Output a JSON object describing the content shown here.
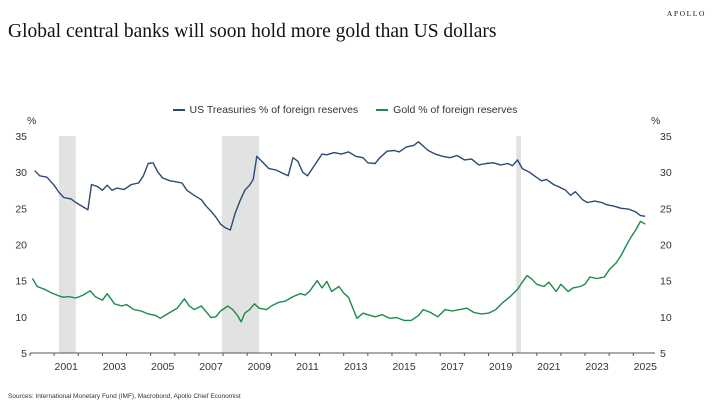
{
  "brand": "APOLLO",
  "title": "Global central banks will soon hold more gold than US dollars",
  "source": "Sources: International Monetary Fund (IMF), Macrobond, Apollo Chief Economist",
  "chart_data": {
    "type": "line",
    "title": "Global central banks will soon hold more gold than US dollars",
    "ylabel_left": "%",
    "ylabel_right": "%",
    "xlim": [
      2000.0,
      2025.9
    ],
    "ylim": [
      5,
      35
    ],
    "y_ticks": [
      5,
      10,
      15,
      20,
      25,
      30,
      35
    ],
    "x_ticks": [
      2001,
      2003,
      2005,
      2007,
      2009,
      2011,
      2013,
      2015,
      2017,
      2019,
      2021,
      2023,
      2025
    ],
    "legend_position": "top-center",
    "grid": false,
    "recession_shading": [
      [
        2001.2,
        2001.9
      ],
      [
        2007.95,
        2009.5
      ],
      [
        2020.15,
        2020.35
      ]
    ],
    "series": [
      {
        "name": "US Treasuries % of foreign reserves",
        "color": "#2b4a73",
        "points": [
          [
            2000.2,
            30.2
          ],
          [
            2000.4,
            29.5
          ],
          [
            2000.7,
            29.3
          ],
          [
            2001.0,
            28.2
          ],
          [
            2001.2,
            27.2
          ],
          [
            2001.4,
            26.5
          ],
          [
            2001.7,
            26.3
          ],
          [
            2001.9,
            25.8
          ],
          [
            2002.2,
            25.2
          ],
          [
            2002.4,
            24.8
          ],
          [
            2002.55,
            28.3
          ],
          [
            2002.8,
            28.0
          ],
          [
            2003.0,
            27.5
          ],
          [
            2003.2,
            28.2
          ],
          [
            2003.4,
            27.5
          ],
          [
            2003.6,
            27.8
          ],
          [
            2003.9,
            27.6
          ],
          [
            2004.2,
            28.3
          ],
          [
            2004.5,
            28.5
          ],
          [
            2004.7,
            29.5
          ],
          [
            2004.9,
            31.2
          ],
          [
            2005.1,
            31.3
          ],
          [
            2005.3,
            30.0
          ],
          [
            2005.5,
            29.2
          ],
          [
            2005.8,
            28.8
          ],
          [
            2006.0,
            28.7
          ],
          [
            2006.3,
            28.5
          ],
          [
            2006.5,
            27.5
          ],
          [
            2006.8,
            26.8
          ],
          [
            2007.1,
            26.2
          ],
          [
            2007.3,
            25.3
          ],
          [
            2007.5,
            24.6
          ],
          [
            2007.7,
            23.8
          ],
          [
            2007.9,
            22.8
          ],
          [
            2008.1,
            22.3
          ],
          [
            2008.3,
            22.0
          ],
          [
            2008.5,
            24.3
          ],
          [
            2008.7,
            26.0
          ],
          [
            2008.9,
            27.5
          ],
          [
            2009.1,
            28.2
          ],
          [
            2009.25,
            29.0
          ],
          [
            2009.4,
            32.2
          ],
          [
            2009.6,
            31.5
          ],
          [
            2009.9,
            30.5
          ],
          [
            2010.2,
            30.3
          ],
          [
            2010.5,
            29.8
          ],
          [
            2010.7,
            29.5
          ],
          [
            2010.9,
            32.0
          ],
          [
            2011.1,
            31.5
          ],
          [
            2011.3,
            30.0
          ],
          [
            2011.5,
            29.5
          ],
          [
            2011.7,
            30.5
          ],
          [
            2011.9,
            31.5
          ],
          [
            2012.1,
            32.5
          ],
          [
            2012.3,
            32.4
          ],
          [
            2012.6,
            32.7
          ],
          [
            2012.9,
            32.5
          ],
          [
            2013.2,
            32.8
          ],
          [
            2013.5,
            32.2
          ],
          [
            2013.8,
            32.0
          ],
          [
            2014.0,
            31.3
          ],
          [
            2014.3,
            31.2
          ],
          [
            2014.5,
            32.0
          ],
          [
            2014.8,
            32.9
          ],
          [
            2015.1,
            33.0
          ],
          [
            2015.3,
            32.8
          ],
          [
            2015.6,
            33.5
          ],
          [
            2015.9,
            33.7
          ],
          [
            2016.1,
            34.2
          ],
          [
            2016.3,
            33.6
          ],
          [
            2016.5,
            33.0
          ],
          [
            2016.8,
            32.5
          ],
          [
            2017.1,
            32.2
          ],
          [
            2017.4,
            32.0
          ],
          [
            2017.7,
            32.3
          ],
          [
            2018.0,
            31.7
          ],
          [
            2018.3,
            31.8
          ],
          [
            2018.6,
            31.0
          ],
          [
            2018.9,
            31.2
          ],
          [
            2019.2,
            31.3
          ],
          [
            2019.5,
            31.0
          ],
          [
            2019.8,
            31.2
          ],
          [
            2020.0,
            30.9
          ],
          [
            2020.2,
            31.7
          ],
          [
            2020.4,
            30.5
          ],
          [
            2020.7,
            30.0
          ],
          [
            2020.9,
            29.5
          ],
          [
            2021.2,
            28.8
          ],
          [
            2021.4,
            29.0
          ],
          [
            2021.7,
            28.3
          ],
          [
            2021.9,
            28.0
          ],
          [
            2022.2,
            27.5
          ],
          [
            2022.4,
            26.8
          ],
          [
            2022.6,
            27.3
          ],
          [
            2022.9,
            26.2
          ],
          [
            2023.1,
            25.8
          ],
          [
            2023.4,
            26.0
          ],
          [
            2023.7,
            25.8
          ],
          [
            2023.9,
            25.5
          ],
          [
            2024.2,
            25.3
          ],
          [
            2024.5,
            25.0
          ],
          [
            2024.8,
            24.9
          ],
          [
            2025.1,
            24.5
          ],
          [
            2025.3,
            24.0
          ],
          [
            2025.5,
            23.9
          ]
        ]
      },
      {
        "name": "Gold % of foreign reserves",
        "color": "#1c8a4a",
        "points": [
          [
            2000.1,
            15.3
          ],
          [
            2000.3,
            14.2
          ],
          [
            2000.6,
            13.8
          ],
          [
            2000.9,
            13.3
          ],
          [
            2001.2,
            12.9
          ],
          [
            2001.4,
            12.7
          ],
          [
            2001.6,
            12.8
          ],
          [
            2001.9,
            12.6
          ],
          [
            2002.2,
            13.0
          ],
          [
            2002.5,
            13.6
          ],
          [
            2002.7,
            12.8
          ],
          [
            2003.0,
            12.3
          ],
          [
            2003.2,
            13.2
          ],
          [
            2003.5,
            11.8
          ],
          [
            2003.8,
            11.5
          ],
          [
            2004.0,
            11.7
          ],
          [
            2004.3,
            11.0
          ],
          [
            2004.6,
            10.8
          ],
          [
            2004.9,
            10.4
          ],
          [
            2005.2,
            10.2
          ],
          [
            2005.4,
            9.8
          ],
          [
            2005.6,
            10.2
          ],
          [
            2005.9,
            10.8
          ],
          [
            2006.1,
            11.2
          ],
          [
            2006.4,
            12.5
          ],
          [
            2006.6,
            11.5
          ],
          [
            2006.8,
            11.0
          ],
          [
            2007.1,
            11.5
          ],
          [
            2007.3,
            10.7
          ],
          [
            2007.5,
            9.9
          ],
          [
            2007.7,
            10.0
          ],
          [
            2007.9,
            10.8
          ],
          [
            2008.2,
            11.5
          ],
          [
            2008.4,
            11.0
          ],
          [
            2008.6,
            10.2
          ],
          [
            2008.75,
            9.3
          ],
          [
            2008.9,
            10.5
          ],
          [
            2009.1,
            11.0
          ],
          [
            2009.3,
            11.8
          ],
          [
            2009.5,
            11.2
          ],
          [
            2009.8,
            11.0
          ],
          [
            2010.0,
            11.5
          ],
          [
            2010.3,
            12.0
          ],
          [
            2010.6,
            12.2
          ],
          [
            2010.9,
            12.8
          ],
          [
            2011.2,
            13.2
          ],
          [
            2011.4,
            13.0
          ],
          [
            2011.6,
            13.6
          ],
          [
            2011.9,
            15.0
          ],
          [
            2012.1,
            14.0
          ],
          [
            2012.3,
            14.9
          ],
          [
            2012.5,
            13.5
          ],
          [
            2012.8,
            14.2
          ],
          [
            2013.0,
            13.3
          ],
          [
            2013.2,
            12.7
          ],
          [
            2013.4,
            11.0
          ],
          [
            2013.55,
            9.8
          ],
          [
            2013.8,
            10.5
          ],
          [
            2014.0,
            10.3
          ],
          [
            2014.3,
            10.0
          ],
          [
            2014.6,
            10.3
          ],
          [
            2014.9,
            9.8
          ],
          [
            2015.2,
            9.9
          ],
          [
            2015.5,
            9.5
          ],
          [
            2015.8,
            9.5
          ],
          [
            2016.1,
            10.2
          ],
          [
            2016.3,
            11.0
          ],
          [
            2016.6,
            10.6
          ],
          [
            2016.9,
            10.0
          ],
          [
            2017.2,
            11.0
          ],
          [
            2017.5,
            10.8
          ],
          [
            2017.8,
            11.0
          ],
          [
            2018.1,
            11.2
          ],
          [
            2018.4,
            10.6
          ],
          [
            2018.7,
            10.4
          ],
          [
            2019.0,
            10.5
          ],
          [
            2019.3,
            11.0
          ],
          [
            2019.6,
            12.0
          ],
          [
            2019.9,
            12.8
          ],
          [
            2020.2,
            13.8
          ],
          [
            2020.4,
            14.8
          ],
          [
            2020.6,
            15.7
          ],
          [
            2020.8,
            15.2
          ],
          [
            2021.0,
            14.5
          ],
          [
            2021.3,
            14.2
          ],
          [
            2021.5,
            14.8
          ],
          [
            2021.8,
            13.5
          ],
          [
            2022.0,
            14.5
          ],
          [
            2022.3,
            13.5
          ],
          [
            2022.5,
            14.0
          ],
          [
            2022.8,
            14.2
          ],
          [
            2023.0,
            14.5
          ],
          [
            2023.2,
            15.5
          ],
          [
            2023.5,
            15.3
          ],
          [
            2023.8,
            15.5
          ],
          [
            2024.0,
            16.5
          ],
          [
            2024.3,
            17.5
          ],
          [
            2024.5,
            18.5
          ],
          [
            2024.7,
            19.8
          ],
          [
            2024.9,
            21.0
          ],
          [
            2025.1,
            22.0
          ],
          [
            2025.3,
            23.2
          ],
          [
            2025.5,
            22.8
          ]
        ]
      }
    ]
  }
}
